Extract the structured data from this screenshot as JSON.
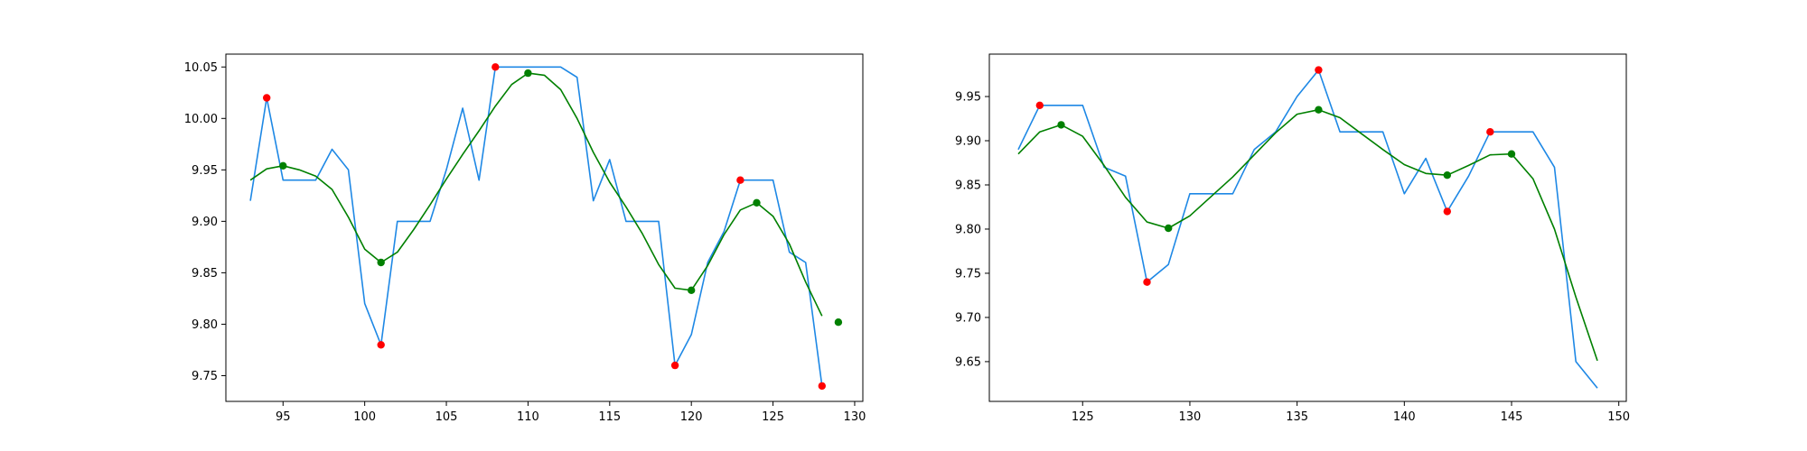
{
  "chart_data": [
    {
      "type": "line",
      "title": "",
      "xlabel": "",
      "ylabel": "",
      "xlim": [
        91.5,
        130.5
      ],
      "ylim": [
        9.725,
        10.0625
      ],
      "xticks": [
        95,
        100,
        105,
        110,
        115,
        120,
        125,
        130
      ],
      "yticks": [
        9.75,
        9.8,
        9.85,
        9.9,
        9.95,
        10.0,
        10.05
      ],
      "grid": false,
      "legend": "none",
      "series": [
        {
          "style": "line",
          "color": "#1e88e5",
          "x": [
            93,
            94,
            95,
            96,
            97,
            98,
            99,
            100,
            101,
            102,
            103,
            104,
            105,
            106,
            107,
            108,
            109,
            110,
            111,
            112,
            113,
            114,
            115,
            116,
            117,
            118,
            119,
            120,
            121,
            122,
            123,
            124,
            125,
            126,
            127,
            128
          ],
          "y": [
            9.92,
            10.02,
            9.94,
            9.94,
            9.94,
            9.97,
            9.95,
            9.82,
            9.78,
            9.9,
            9.9,
            9.9,
            9.95,
            10.01,
            9.94,
            10.05,
            10.05,
            10.05,
            10.05,
            10.05,
            10.04,
            9.92,
            9.96,
            9.9,
            9.9,
            9.9,
            9.76,
            9.79,
            9.86,
            9.89,
            9.94,
            9.94,
            9.94,
            9.87,
            9.86,
            9.74
          ]
        },
        {
          "style": "line",
          "color": "#008000",
          "x": [
            93,
            94,
            95,
            96,
            97,
            98,
            99,
            100,
            101,
            102,
            103,
            104,
            105,
            106,
            107,
            108,
            109,
            110,
            111,
            112,
            113,
            114,
            115,
            116,
            117,
            118,
            119,
            120,
            121,
            122,
            123,
            124,
            125,
            126,
            127,
            128
          ],
          "y": [
            9.94,
            9.951,
            9.954,
            9.95,
            9.944,
            9.931,
            9.904,
            9.873,
            9.86,
            9.87,
            9.892,
            9.916,
            9.941,
            9.965,
            9.988,
            10.012,
            10.033,
            10.044,
            10.042,
            10.028,
            10.0,
            9.967,
            9.938,
            9.914,
            9.888,
            9.858,
            9.835,
            9.833,
            9.857,
            9.887,
            9.911,
            9.918,
            9.905,
            9.878,
            9.841,
            9.808
          ]
        },
        {
          "style": "scatter",
          "color": "#ff0000",
          "x": [
            94,
            101,
            108,
            119,
            123,
            128
          ],
          "y": [
            10.02,
            9.78,
            10.05,
            9.76,
            9.94,
            9.74
          ]
        },
        {
          "style": "scatter",
          "color": "#008000",
          "x": [
            95,
            101,
            110,
            120,
            124,
            129
          ],
          "y": [
            9.954,
            9.86,
            10.044,
            9.833,
            9.918,
            9.802
          ]
        }
      ]
    },
    {
      "type": "line",
      "title": "",
      "xlabel": "",
      "ylabel": "",
      "xlim": [
        120.65,
        150.35
      ],
      "ylim": [
        9.605,
        9.998
      ],
      "xticks": [
        125,
        130,
        135,
        140,
        145,
        150
      ],
      "yticks": [
        9.65,
        9.7,
        9.75,
        9.8,
        9.85,
        9.9,
        9.95
      ],
      "grid": false,
      "legend": "none",
      "series": [
        {
          "style": "line",
          "color": "#1e88e5",
          "x": [
            122,
            123,
            124,
            125,
            126,
            127,
            128,
            129,
            130,
            131,
            132,
            133,
            134,
            135,
            136,
            137,
            138,
            139,
            140,
            141,
            142,
            143,
            144,
            145,
            146,
            147,
            148,
            149
          ],
          "y": [
            9.89,
            9.94,
            9.94,
            9.94,
            9.87,
            9.86,
            9.74,
            9.76,
            9.84,
            9.84,
            9.84,
            9.89,
            9.91,
            9.95,
            9.98,
            9.91,
            9.91,
            9.91,
            9.84,
            9.88,
            9.82,
            9.86,
            9.91,
            9.91,
            9.91,
            9.87,
            9.65,
            9.62
          ]
        },
        {
          "style": "line",
          "color": "#008000",
          "x": [
            122,
            123,
            124,
            125,
            126,
            127,
            128,
            129,
            130,
            131,
            132,
            133,
            134,
            135,
            136,
            137,
            138,
            139,
            140,
            141,
            142,
            143,
            144,
            145,
            146,
            147,
            148,
            149
          ],
          "y": [
            9.885,
            9.91,
            9.918,
            9.905,
            9.872,
            9.836,
            9.808,
            9.801,
            9.815,
            9.837,
            9.859,
            9.884,
            9.909,
            9.93,
            9.935,
            9.926,
            9.908,
            9.89,
            9.873,
            9.863,
            9.861,
            9.872,
            9.884,
            9.885,
            9.857,
            9.8,
            9.723,
            9.651
          ]
        },
        {
          "style": "scatter",
          "color": "#ff0000",
          "x": [
            123,
            128,
            136,
            142,
            144
          ],
          "y": [
            9.94,
            9.74,
            9.98,
            9.82,
            9.91
          ]
        },
        {
          "style": "scatter",
          "color": "#008000",
          "x": [
            124,
            129,
            136,
            142,
            145
          ],
          "y": [
            9.918,
            9.801,
            9.935,
            9.861,
            9.885
          ]
        }
      ]
    }
  ]
}
